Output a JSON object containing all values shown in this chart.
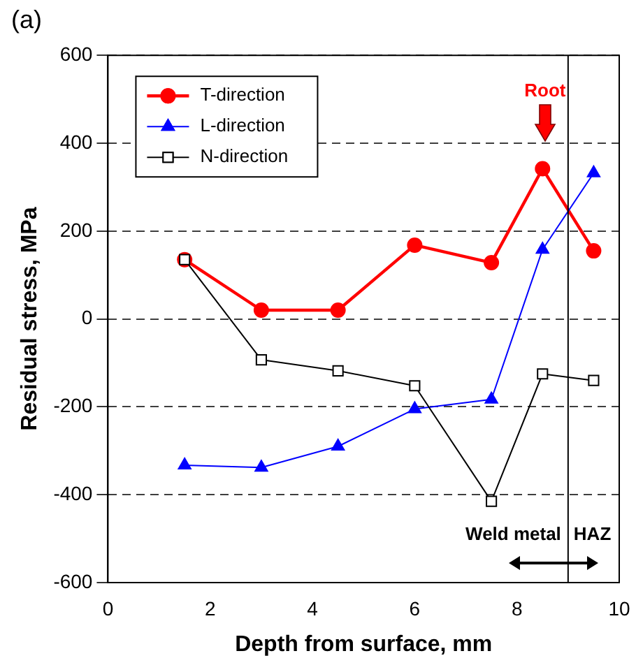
{
  "chart_data": {
    "type": "line",
    "title": "(a)",
    "xlabel": "Depth from surface, mm",
    "ylabel": "Residual stress, MPa",
    "x": [
      1.5,
      3,
      4.5,
      6,
      7.5,
      8.5,
      9.5
    ],
    "series": [
      {
        "name": "T-direction",
        "color": "#ff0000",
        "marker": "circle",
        "values": [
          135,
          20,
          20,
          168,
          128,
          342,
          155
        ]
      },
      {
        "name": "L-direction",
        "color": "#0000ff",
        "marker": "triangle",
        "values": [
          -333,
          -338,
          -290,
          -205,
          -183,
          158,
          332
        ]
      },
      {
        "name": "N-direction",
        "color": "#000000",
        "marker": "square",
        "values": [
          135,
          -93,
          -118,
          -152,
          -415,
          -125,
          -140
        ]
      }
    ],
    "xlim": [
      0,
      10
    ],
    "xticks": [
      0,
      2,
      4,
      6,
      8,
      10
    ],
    "ylim": [
      -600,
      600
    ],
    "yticks": [
      -600,
      -400,
      -200,
      0,
      200,
      400,
      600
    ],
    "grid": "y",
    "legend": "top left",
    "line_style": "solid",
    "ref_lines": [
      {
        "axis": "x",
        "value": 9,
        "color": "#000000"
      }
    ],
    "annotations": [
      "Root",
      "Weld metal",
      "HAZ"
    ]
  }
}
